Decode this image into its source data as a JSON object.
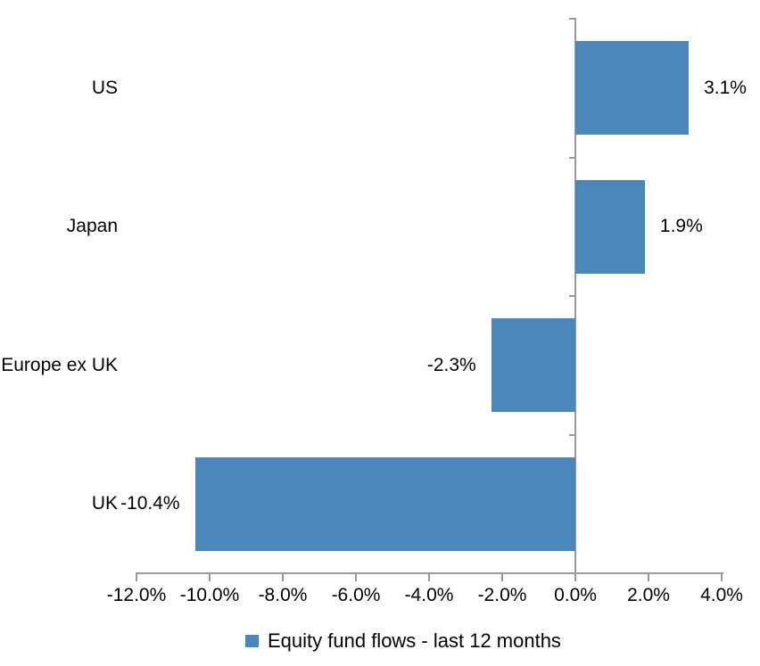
{
  "chart_data": {
    "type": "bar",
    "orientation": "horizontal",
    "categories": [
      "US",
      "Japan",
      "Europe ex UK",
      "UK"
    ],
    "values": [
      3.1,
      1.9,
      -2.3,
      -10.4
    ],
    "value_labels": [
      "3.1%",
      "1.9%",
      "-2.3%",
      "-10.4%"
    ],
    "x_tick_labels": [
      "-12.0%",
      "-10.0%",
      "-8.0%",
      "-6.0%",
      "-4.0%",
      "-2.0%",
      "0.0%",
      "2.0%",
      "4.0%"
    ],
    "x_tick_values": [
      -12,
      -10,
      -8,
      -6,
      -4,
      -2,
      0,
      2,
      4
    ],
    "xlim": [
      -12,
      4
    ],
    "grid": "off",
    "legend_position": "bottom",
    "legend_label": "Equity fund flows - last 12 months",
    "bar_color": "#4c87bc",
    "axis_color": "#9b9b9b",
    "text_color": "#000000"
  }
}
